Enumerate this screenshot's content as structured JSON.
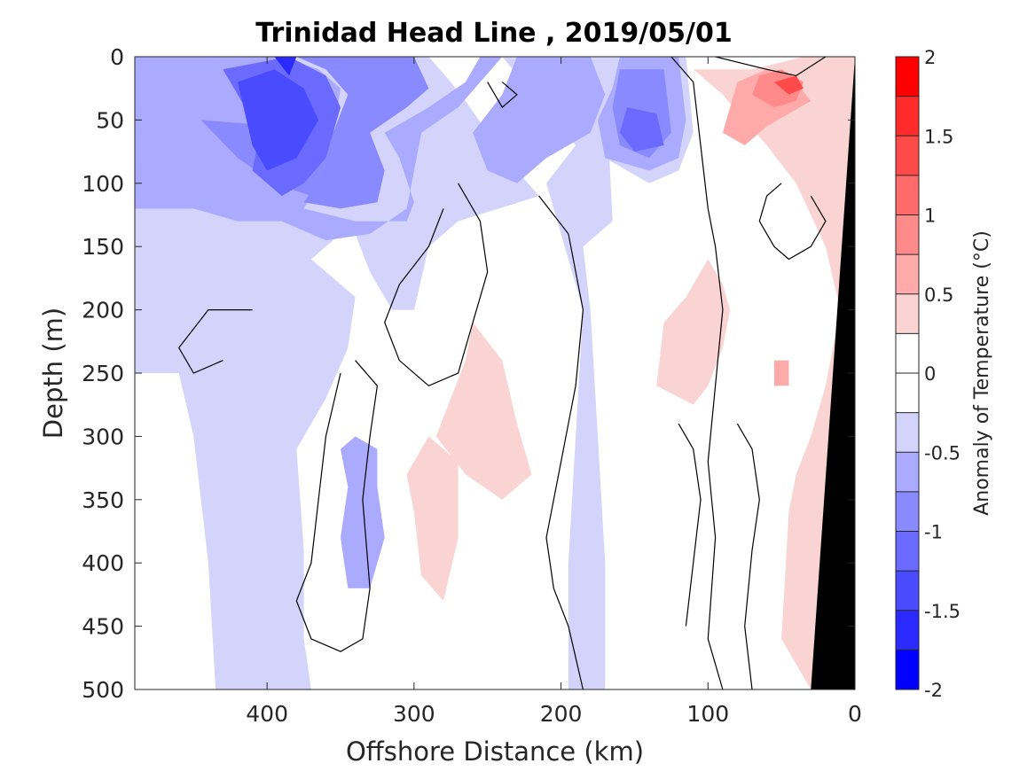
{
  "chart_data": {
    "type": "heatmap",
    "title": "Trinidad Head Line , 2019/05/01",
    "xlabel": "Offshore Distance (km)",
    "ylabel": "Depth (m)",
    "xlim": [
      490,
      0
    ],
    "ylim": [
      0,
      500
    ],
    "x_reversed": true,
    "y_reversed": true,
    "x_ticks": [
      400,
      300,
      200,
      100,
      0
    ],
    "y_ticks": [
      0,
      50,
      100,
      150,
      200,
      250,
      300,
      350,
      400,
      450,
      500
    ],
    "colorbar": {
      "label": "Anomaly of Temperature (°C)",
      "range": [
        -2,
        2
      ],
      "step": 0.25,
      "tick_values": [
        2,
        1.5,
        1,
        0.5,
        0,
        -0.5,
        -1,
        -1.5,
        -2
      ],
      "colors": {
        "-2": "#0000ff",
        "-1.75": "#2a2aff",
        "-1.5": "#4a4aff",
        "-1.25": "#6a6aff",
        "-1": "#8a8aff",
        "-0.75": "#aaaaff",
        "-0.5": "#d3d3fb",
        "0": "#ffffff",
        "0.5": "#fad3d3",
        "0.75": "#ffaaaa",
        "1": "#ff8a8a",
        "1.25": "#ff6a6a",
        "1.5": "#ff4a4a",
        "1.75": "#ff2a2a",
        "2": "#ff0000"
      }
    },
    "regions": [
      {
        "level": -0.5,
        "points": [
          [
            490,
            0
          ],
          [
            420,
            0
          ],
          [
            380,
            0
          ],
          [
            340,
            0
          ],
          [
            340,
            130
          ],
          [
            370,
            160
          ],
          [
            340,
            190
          ],
          [
            345,
            230
          ],
          [
            360,
            270
          ],
          [
            380,
            310
          ],
          [
            375,
            390
          ],
          [
            375,
            460
          ],
          [
            370,
            500
          ],
          [
            435,
            500
          ],
          [
            440,
            400
          ],
          [
            450,
            300
          ],
          [
            460,
            250
          ],
          [
            490,
            250
          ]
        ]
      },
      {
        "level": -0.5,
        "points": [
          [
            345,
            0
          ],
          [
            290,
            0
          ],
          [
            275,
            20
          ],
          [
            265,
            35
          ],
          [
            250,
            60
          ],
          [
            230,
            90
          ],
          [
            215,
            110
          ],
          [
            270,
            130
          ],
          [
            290,
            150
          ],
          [
            300,
            200
          ],
          [
            315,
            200
          ],
          [
            330,
            170
          ],
          [
            340,
            140
          ]
        ]
      },
      {
        "level": -0.5,
        "points": [
          [
            240,
            0
          ],
          [
            195,
            0
          ],
          [
            185,
            10
          ],
          [
            170,
            10
          ],
          [
            165,
            130
          ],
          [
            185,
            150
          ],
          [
            180,
            200
          ],
          [
            175,
            300
          ],
          [
            170,
            400
          ],
          [
            170,
            500
          ],
          [
            195,
            500
          ],
          [
            195,
            400
          ],
          [
            190,
            300
          ],
          [
            185,
            200
          ],
          [
            200,
            140
          ],
          [
            210,
            100
          ],
          [
            190,
            70
          ]
        ]
      },
      {
        "level": -0.5,
        "points": [
          [
            195,
            0
          ],
          [
            115,
            0
          ],
          [
            110,
            60
          ],
          [
            120,
            90
          ],
          [
            140,
            100
          ],
          [
            170,
            80
          ]
        ]
      },
      {
        "level": -0.5,
        "points": [
          [
            50,
            55
          ],
          [
            42,
            60
          ],
          [
            45,
            80
          ],
          [
            55,
            72
          ]
        ]
      },
      {
        "level": -0.75,
        "points": [
          [
            490,
            0
          ],
          [
            390,
            0
          ],
          [
            365,
            10
          ],
          [
            350,
            25
          ],
          [
            355,
            60
          ],
          [
            365,
            100
          ],
          [
            375,
            120
          ],
          [
            340,
            130
          ],
          [
            305,
            130
          ],
          [
            300,
            115
          ],
          [
            310,
            80
          ],
          [
            320,
            60
          ],
          [
            290,
            40
          ],
          [
            265,
            20
          ],
          [
            255,
            0
          ],
          [
            240,
            0
          ],
          [
            270,
            40
          ],
          [
            295,
            60
          ],
          [
            300,
            90
          ],
          [
            305,
            120
          ],
          [
            330,
            140
          ],
          [
            360,
            145
          ],
          [
            390,
            130
          ],
          [
            420,
            130
          ],
          [
            450,
            120
          ],
          [
            490,
            120
          ]
        ]
      },
      {
        "level": -0.75,
        "points": [
          [
            230,
            0
          ],
          [
            180,
            0
          ],
          [
            170,
            30
          ],
          [
            180,
            60
          ],
          [
            210,
            80
          ],
          [
            230,
            100
          ],
          [
            250,
            90
          ],
          [
            260,
            60
          ],
          [
            240,
            30
          ]
        ]
      },
      {
        "level": -0.75,
        "points": [
          [
            160,
            0
          ],
          [
            120,
            0
          ],
          [
            115,
            50
          ],
          [
            120,
            80
          ],
          [
            140,
            90
          ],
          [
            170,
            80
          ],
          [
            175,
            50
          ],
          [
            165,
            25
          ]
        ]
      },
      {
        "level": -0.75,
        "points": [
          [
            340,
            300
          ],
          [
            325,
            310
          ],
          [
            325,
            340
          ],
          [
            320,
            380
          ],
          [
            330,
            420
          ],
          [
            345,
            420
          ],
          [
            350,
            380
          ],
          [
            345,
            340
          ],
          [
            350,
            310
          ]
        ]
      },
      {
        "level": -1,
        "points": [
          [
            450,
            0
          ],
          [
            380,
            0
          ],
          [
            360,
            10
          ],
          [
            345,
            30
          ],
          [
            355,
            60
          ],
          [
            360,
            90
          ],
          [
            375,
            115
          ],
          [
            350,
            120
          ],
          [
            325,
            115
          ],
          [
            320,
            90
          ],
          [
            330,
            60
          ],
          [
            305,
            40
          ],
          [
            290,
            25
          ],
          [
            300,
            0
          ]
        ]
      },
      {
        "level": -1,
        "points": [
          [
            445,
            50
          ],
          [
            420,
            80
          ],
          [
            395,
            100
          ],
          [
            370,
            110
          ],
          [
            350,
            110
          ],
          [
            335,
            90
          ],
          [
            340,
            60
          ]
        ]
      },
      {
        "level": -1,
        "points": [
          [
            160,
            10
          ],
          [
            130,
            10
          ],
          [
            125,
            60
          ],
          [
            140,
            80
          ],
          [
            160,
            70
          ],
          [
            165,
            40
          ]
        ]
      },
      {
        "level": -1.25,
        "points": [
          [
            430,
            10
          ],
          [
            385,
            0
          ],
          [
            360,
            15
          ],
          [
            350,
            40
          ],
          [
            360,
            80
          ],
          [
            375,
            100
          ],
          [
            390,
            110
          ],
          [
            410,
            90
          ],
          [
            405,
            60
          ],
          [
            420,
            30
          ]
        ]
      },
      {
        "level": -1.25,
        "points": [
          [
            155,
            40
          ],
          [
            135,
            45
          ],
          [
            130,
            70
          ],
          [
            150,
            75
          ],
          [
            160,
            60
          ]
        ]
      },
      {
        "level": -1.5,
        "points": [
          [
            420,
            20
          ],
          [
            395,
            10
          ],
          [
            375,
            25
          ],
          [
            365,
            50
          ],
          [
            380,
            80
          ],
          [
            400,
            90
          ],
          [
            410,
            70
          ]
        ]
      },
      {
        "level": -1.75,
        "points": [
          [
            395,
            0
          ],
          [
            380,
            0
          ],
          [
            385,
            15
          ]
        ]
      },
      {
        "level": 0.5,
        "points": [
          [
            110,
            10
          ],
          [
            90,
            30
          ],
          [
            75,
            50
          ],
          [
            60,
            70
          ],
          [
            40,
            100
          ],
          [
            20,
            150
          ],
          [
            10,
            200
          ],
          [
            20,
            260
          ],
          [
            30,
            300
          ],
          [
            40,
            330
          ],
          [
            45,
            360
          ],
          [
            50,
            460
          ],
          [
            30,
            500
          ],
          [
            0,
            500
          ],
          [
            0,
            250
          ],
          [
            0,
            0
          ],
          [
            35,
            0
          ],
          [
            70,
            10
          ]
        ]
      },
      {
        "level": 0.5,
        "points": [
          [
            100,
            160
          ],
          [
            115,
            190
          ],
          [
            130,
            210
          ],
          [
            135,
            260
          ],
          [
            110,
            275
          ],
          [
            100,
            260
          ],
          [
            90,
            230
          ],
          [
            85,
            200
          ],
          [
            90,
            180
          ]
        ]
      },
      {
        "level": 0.5,
        "points": [
          [
            260,
            210
          ],
          [
            240,
            240
          ],
          [
            230,
            290
          ],
          [
            220,
            330
          ],
          [
            240,
            350
          ],
          [
            265,
            330
          ],
          [
            285,
            300
          ],
          [
            275,
            270
          ],
          [
            265,
            240
          ]
        ]
      },
      {
        "level": 0.5,
        "points": [
          [
            290,
            300
          ],
          [
            270,
            320
          ],
          [
            270,
            380
          ],
          [
            280,
            430
          ],
          [
            295,
            410
          ],
          [
            300,
            360
          ],
          [
            305,
            330
          ]
        ]
      },
      {
        "level": 0.75,
        "points": [
          [
            90,
            60
          ],
          [
            75,
            70
          ],
          [
            60,
            55
          ],
          [
            45,
            45
          ],
          [
            30,
            35
          ],
          [
            40,
            20
          ],
          [
            60,
            10
          ],
          [
            80,
            20
          ]
        ]
      },
      {
        "level": 0.75,
        "points": [
          [
            55,
            240
          ],
          [
            45,
            240
          ],
          [
            45,
            260
          ],
          [
            55,
            260
          ]
        ]
      },
      {
        "level": 1,
        "points": [
          [
            70,
            30
          ],
          [
            55,
            40
          ],
          [
            40,
            35
          ],
          [
            35,
            20
          ],
          [
            50,
            10
          ],
          [
            65,
            15
          ]
        ]
      },
      {
        "level": 1.5,
        "points": [
          [
            55,
            20
          ],
          [
            45,
            30
          ],
          [
            35,
            25
          ],
          [
            40,
            15
          ]
        ]
      }
    ],
    "contours": [
      [
        [
          125,
          0
        ],
        [
          110,
          20
        ],
        [
          105,
          70
        ],
        [
          100,
          120
        ],
        [
          95,
          150
        ],
        [
          90,
          200
        ],
        [
          95,
          260
        ],
        [
          100,
          320
        ],
        [
          95,
          380
        ],
        [
          100,
          460
        ],
        [
          90,
          500
        ]
      ],
      [
        [
          95,
          0
        ],
        [
          60,
          10
        ],
        [
          40,
          15
        ],
        [
          20,
          0
        ]
      ],
      [
        [
          50,
          100
        ],
        [
          60,
          110
        ],
        [
          65,
          130
        ],
        [
          55,
          150
        ],
        [
          45,
          160
        ],
        [
          30,
          150
        ],
        [
          20,
          130
        ],
        [
          30,
          110
        ]
      ],
      [
        [
          340,
          240
        ],
        [
          325,
          260
        ],
        [
          330,
          300
        ],
        [
          335,
          350
        ],
        [
          330,
          420
        ],
        [
          335,
          460
        ],
        [
          350,
          470
        ],
        [
          370,
          460
        ],
        [
          380,
          430
        ],
        [
          370,
          400
        ],
        [
          365,
          350
        ],
        [
          360,
          300
        ],
        [
          350,
          250
        ]
      ],
      [
        [
          270,
          100
        ],
        [
          255,
          130
        ],
        [
          250,
          170
        ],
        [
          260,
          210
        ],
        [
          270,
          250
        ],
        [
          290,
          260
        ],
        [
          310,
          240
        ],
        [
          320,
          210
        ],
        [
          310,
          180
        ],
        [
          290,
          150
        ],
        [
          280,
          120
        ]
      ],
      [
        [
          215,
          110
        ],
        [
          195,
          140
        ],
        [
          185,
          200
        ],
        [
          190,
          260
        ],
        [
          200,
          320
        ],
        [
          210,
          380
        ],
        [
          205,
          420
        ],
        [
          195,
          450
        ],
        [
          185,
          500
        ]
      ],
      [
        [
          410,
          200
        ],
        [
          440,
          200
        ],
        [
          460,
          230
        ],
        [
          450,
          250
        ],
        [
          430,
          240
        ]
      ],
      [
        [
          250,
          20
        ],
        [
          240,
          40
        ],
        [
          230,
          30
        ],
        [
          240,
          20
        ]
      ],
      [
        [
          80,
          290
        ],
        [
          70,
          310
        ],
        [
          65,
          350
        ],
        [
          70,
          390
        ],
        [
          75,
          450
        ],
        [
          70,
          500
        ]
      ],
      [
        [
          120,
          290
        ],
        [
          110,
          310
        ],
        [
          105,
          350
        ],
        [
          110,
          400
        ],
        [
          115,
          450
        ]
      ]
    ]
  }
}
